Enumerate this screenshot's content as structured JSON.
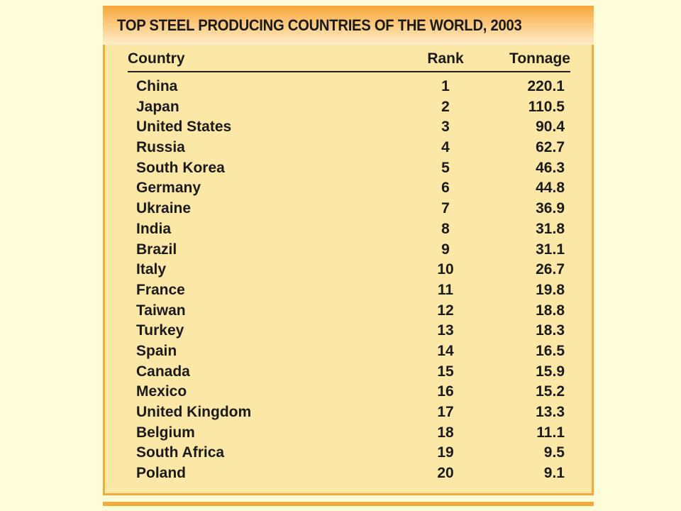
{
  "table": {
    "title": "TOP STEEL PRODUCING COUNTRIES OF THE WORLD, 2003",
    "headers": {
      "country": "Country",
      "rank": "Rank",
      "tonnage": "Tonnage"
    },
    "rows": [
      {
        "country": "China",
        "rank": "1",
        "tonnage": "220.1"
      },
      {
        "country": "Japan",
        "rank": "2",
        "tonnage": "110.5"
      },
      {
        "country": "United States",
        "rank": "3",
        "tonnage": "90.4"
      },
      {
        "country": "Russia",
        "rank": "4",
        "tonnage": "62.7"
      },
      {
        "country": "South Korea",
        "rank": "5",
        "tonnage": "46.3"
      },
      {
        "country": "Germany",
        "rank": "6",
        "tonnage": "44.8"
      },
      {
        "country": "Ukraine",
        "rank": "7",
        "tonnage": "36.9"
      },
      {
        "country": "India",
        "rank": "8",
        "tonnage": "31.8"
      },
      {
        "country": "Brazil",
        "rank": "9",
        "tonnage": "31.1"
      },
      {
        "country": "Italy",
        "rank": "10",
        "tonnage": "26.7"
      },
      {
        "country": "France",
        "rank": "11",
        "tonnage": "19.8"
      },
      {
        "country": "Taiwan",
        "rank": "12",
        "tonnage": "18.8"
      },
      {
        "country": "Turkey",
        "rank": "13",
        "tonnage": "18.3"
      },
      {
        "country": "Spain",
        "rank": "14",
        "tonnage": "16.5"
      },
      {
        "country": "Canada",
        "rank": "15",
        "tonnage": "15.9"
      },
      {
        "country": "Mexico",
        "rank": "16",
        "tonnage": "15.2"
      },
      {
        "country": "United Kingdom",
        "rank": "17",
        "tonnage": "13.3"
      },
      {
        "country": "Belgium",
        "rank": "18",
        "tonnage": "11.1"
      },
      {
        "country": "South Africa",
        "rank": "19",
        "tonnage": "9.5"
      },
      {
        "country": "Poland",
        "rank": "20",
        "tonnage": "9.1"
      }
    ]
  },
  "colors": {
    "background": "#fdfdd9",
    "panel": "#fce8a6",
    "accent": "#f6a93b",
    "text": "#1a1a1a"
  }
}
